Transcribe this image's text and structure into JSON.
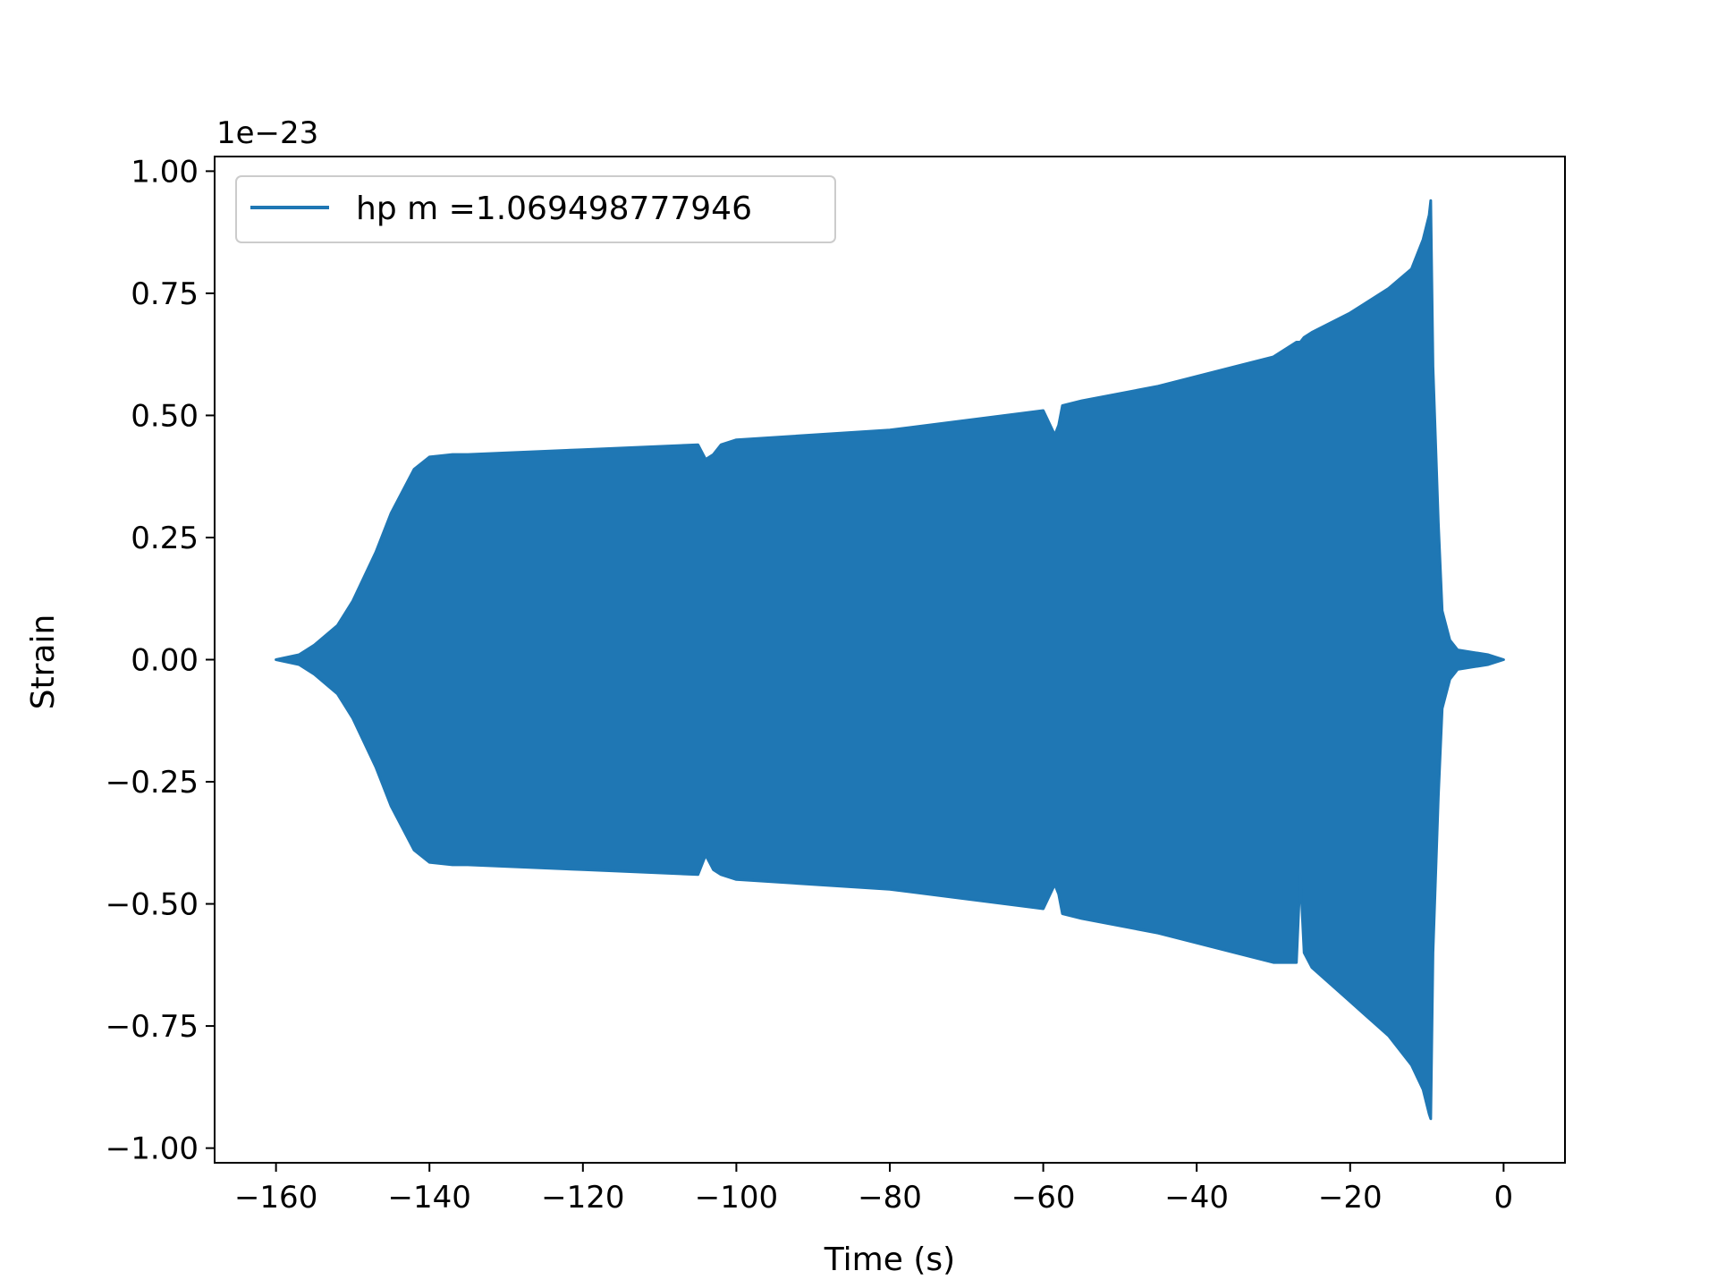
{
  "chart_data": {
    "type": "line",
    "title": "",
    "xlabel": "Time (s)",
    "ylabel": "Strain",
    "y_offset_text": "1e−23",
    "xlim": [
      -168,
      8
    ],
    "ylim": [
      -1.03,
      1.03
    ],
    "xticks": [
      -160,
      -140,
      -120,
      -100,
      -80,
      -60,
      -40,
      -20,
      0
    ],
    "xtick_labels": [
      "−160",
      "−140",
      "−120",
      "−100",
      "−80",
      "−60",
      "−40",
      "−20",
      "0"
    ],
    "yticks": [
      1.0,
      0.75,
      0.5,
      0.25,
      0.0,
      -0.25,
      -0.5,
      -0.75,
      -1.0
    ],
    "ytick_labels": [
      "1.00",
      "0.75",
      "0.50",
      "0.25",
      "0.00",
      "−0.25",
      "−0.50",
      "−0.75",
      "−1.00"
    ],
    "grid": false,
    "legend_position": "top-left",
    "series": [
      {
        "name": "hp m =1.069498777946",
        "color": "#1f77b4",
        "envelope": {
          "time": [
            -160,
            -157,
            -155,
            -152,
            -150,
            -147,
            -145,
            -142,
            -140,
            -137,
            -135,
            -120,
            -105,
            -104,
            -103,
            -102,
            -100,
            -80,
            -60,
            -58.5,
            -58,
            -57.5,
            -55,
            -45,
            -35,
            -30,
            -27,
            -26.5,
            -26,
            -25,
            -20,
            -15,
            -12,
            -10.5,
            -9.7,
            -9.5,
            -9.2,
            -8.5,
            -8,
            -7,
            -6,
            -4,
            -2,
            0
          ],
          "upper": [
            0.0,
            0.01,
            0.03,
            0.07,
            0.12,
            0.22,
            0.3,
            0.39,
            0.415,
            0.42,
            0.42,
            0.43,
            0.44,
            0.41,
            0.42,
            0.44,
            0.45,
            0.47,
            0.51,
            0.46,
            0.48,
            0.52,
            0.53,
            0.56,
            0.6,
            0.62,
            0.65,
            0.65,
            0.66,
            0.67,
            0.71,
            0.76,
            0.8,
            0.86,
            0.91,
            0.94,
            0.6,
            0.28,
            0.1,
            0.04,
            0.02,
            0.015,
            0.01,
            0.0
          ],
          "lower": [
            0.0,
            -0.01,
            -0.03,
            -0.07,
            -0.12,
            -0.22,
            -0.3,
            -0.39,
            -0.415,
            -0.42,
            -0.42,
            -0.43,
            -0.44,
            -0.4,
            -0.43,
            -0.44,
            -0.45,
            -0.47,
            -0.51,
            -0.46,
            -0.48,
            -0.52,
            -0.53,
            -0.56,
            -0.6,
            -0.62,
            -0.62,
            -0.44,
            -0.6,
            -0.63,
            -0.7,
            -0.77,
            -0.83,
            -0.88,
            -0.93,
            -0.94,
            -0.6,
            -0.28,
            -0.1,
            -0.04,
            -0.02,
            -0.015,
            -0.01,
            0.0
          ]
        }
      }
    ]
  }
}
